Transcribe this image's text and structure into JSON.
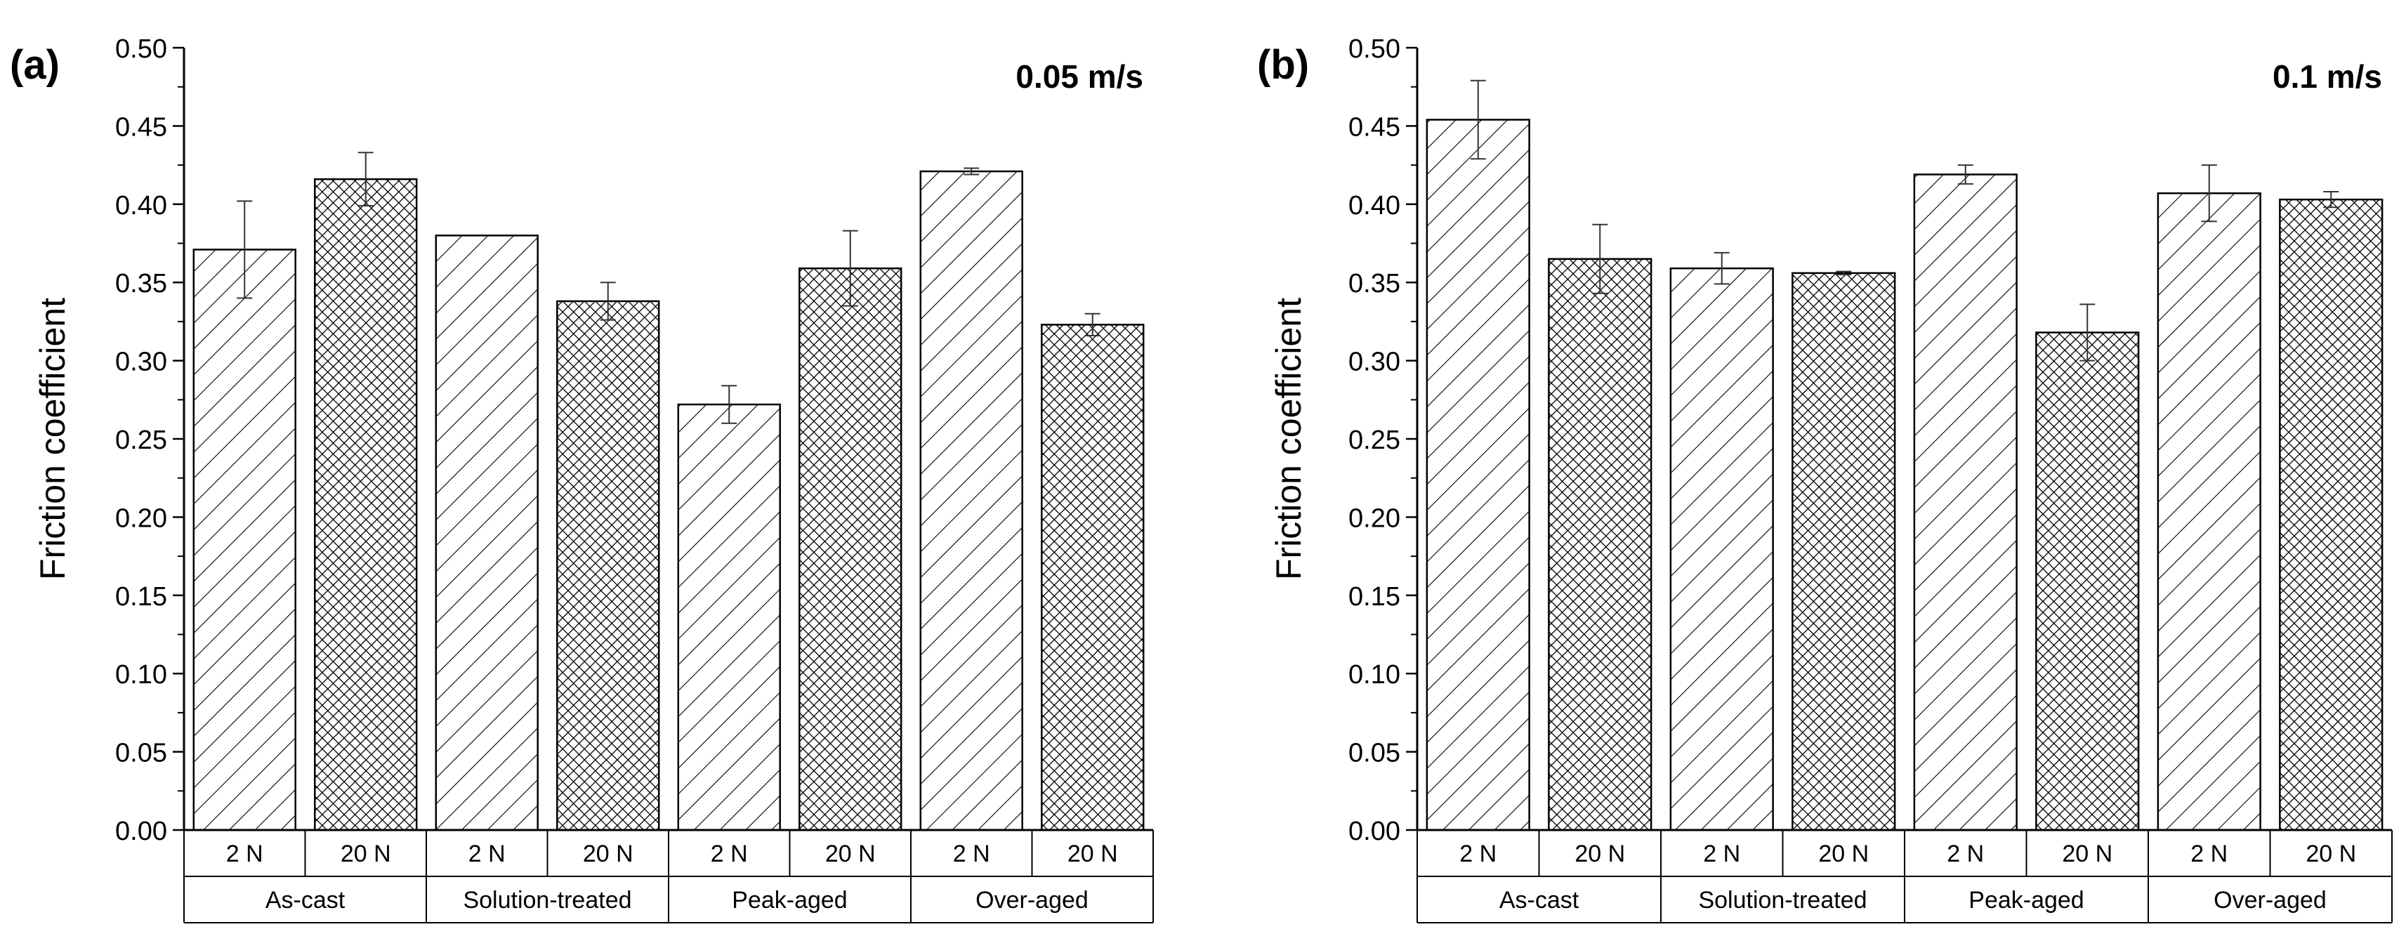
{
  "chart_data": [
    {
      "type": "bar",
      "panel_label": "(a)",
      "title": "0.05 m/s",
      "ylabel": "Friction coefficient",
      "xlabel": "",
      "ylim": [
        0,
        0.5
      ],
      "ytick_step": 0.05,
      "ytick_labels": [
        "0.00",
        "0.05",
        "0.10",
        "0.15",
        "0.20",
        "0.25",
        "0.30",
        "0.35",
        "0.40",
        "0.45",
        "0.50"
      ],
      "groups": [
        "As-cast",
        "Solution-treated",
        "Peak-aged",
        "Over-aged"
      ],
      "loads": [
        "2 N",
        "20 N"
      ],
      "bars": [
        {
          "group": "As-cast",
          "load": "2 N",
          "value": 0.371,
          "error": 0.031
        },
        {
          "group": "As-cast",
          "load": "20 N",
          "value": 0.416,
          "error": 0.017
        },
        {
          "group": "Solution-treated",
          "load": "2 N",
          "value": 0.38,
          "error": 0.0
        },
        {
          "group": "Solution-treated",
          "load": "20 N",
          "value": 0.338,
          "error": 0.012
        },
        {
          "group": "Peak-aged",
          "load": "2 N",
          "value": 0.272,
          "error": 0.012
        },
        {
          "group": "Peak-aged",
          "load": "20 N",
          "value": 0.359,
          "error": 0.024
        },
        {
          "group": "Over-aged",
          "load": "2 N",
          "value": 0.421,
          "error": 0.002
        },
        {
          "group": "Over-aged",
          "load": "20 N",
          "value": 0.323,
          "error": 0.007
        }
      ]
    },
    {
      "type": "bar",
      "panel_label": "(b)",
      "title": "0.1 m/s",
      "ylabel": "Friction coefficient",
      "xlabel": "",
      "ylim": [
        0,
        0.5
      ],
      "ytick_step": 0.05,
      "ytick_labels": [
        "0.00",
        "0.05",
        "0.10",
        "0.15",
        "0.20",
        "0.25",
        "0.30",
        "0.35",
        "0.40",
        "0.45",
        "0.50"
      ],
      "groups": [
        "As-cast",
        "Solution-treated",
        "Peak-aged",
        "Over-aged"
      ],
      "loads": [
        "2 N",
        "20 N"
      ],
      "bars": [
        {
          "group": "As-cast",
          "load": "2 N",
          "value": 0.454,
          "error": 0.025
        },
        {
          "group": "As-cast",
          "load": "20 N",
          "value": 0.365,
          "error": 0.022
        },
        {
          "group": "Solution-treated",
          "load": "2 N",
          "value": 0.359,
          "error": 0.01
        },
        {
          "group": "Solution-treated",
          "load": "20 N",
          "value": 0.356,
          "error": 0.001
        },
        {
          "group": "Peak-aged",
          "load": "2 N",
          "value": 0.419,
          "error": 0.006
        },
        {
          "group": "Peak-aged",
          "load": "20 N",
          "value": 0.318,
          "error": 0.018
        },
        {
          "group": "Over-aged",
          "load": "2 N",
          "value": 0.407,
          "error": 0.018
        },
        {
          "group": "Over-aged",
          "load": "20 N",
          "value": 0.403,
          "error": 0.005
        }
      ]
    }
  ]
}
